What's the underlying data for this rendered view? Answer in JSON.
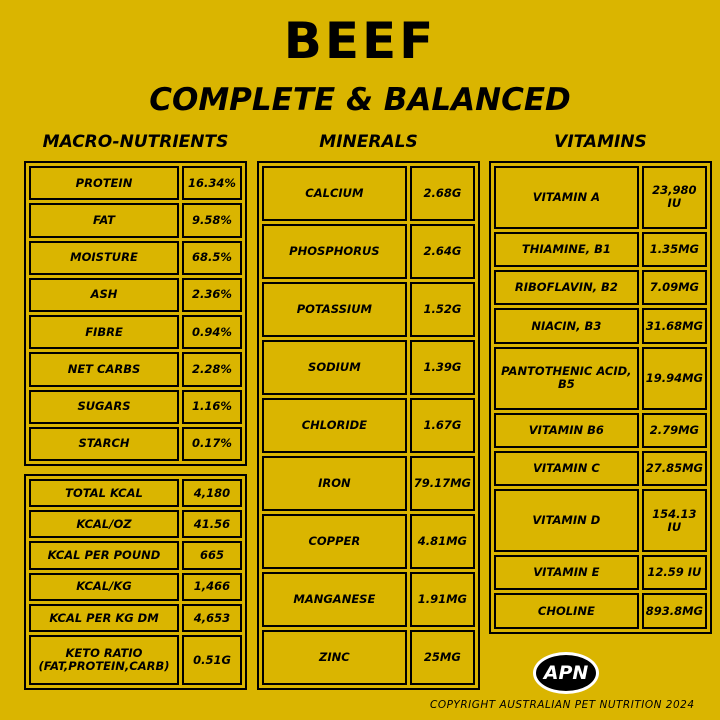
{
  "header": {
    "title": "BEEF",
    "subtitle": "COMPLETE & BALANCED"
  },
  "macro": {
    "heading": "MACRO-NUTRIENTS",
    "rows": [
      [
        "PROTEIN",
        "16.34%"
      ],
      [
        "FAT",
        "9.58%"
      ],
      [
        "MOISTURE",
        "68.5%"
      ],
      [
        "ASH",
        "2.36%"
      ],
      [
        "FIBRE",
        "0.94%"
      ],
      [
        "NET CARBS",
        "2.28%"
      ],
      [
        "SUGARS",
        "1.16%"
      ],
      [
        "STARCH",
        "0.17%"
      ]
    ]
  },
  "energy": {
    "rows": [
      [
        "TOTAL KCAL",
        "4,180"
      ],
      [
        "KCAL/OZ",
        "41.56"
      ],
      [
        "KCAL PER POUND",
        "665"
      ],
      [
        "KCAL/KG",
        "1,466"
      ],
      [
        "KCAL PER KG DM",
        "4,653"
      ],
      [
        "KETO RATIO (FAT,PROTEIN,CARB)",
        "0.51G"
      ]
    ]
  },
  "minerals": {
    "heading": "MINERALS",
    "rows": [
      [
        "CALCIUM",
        "2.68G"
      ],
      [
        "PHOSPHORUS",
        "2.64G"
      ],
      [
        "POTASSIUM",
        "1.52G"
      ],
      [
        "SODIUM",
        "1.39G"
      ],
      [
        "CHLORIDE",
        "1.67G"
      ],
      [
        "IRON",
        "79.17MG"
      ],
      [
        "COPPER",
        "4.81MG"
      ],
      [
        "MANGANESE",
        "1.91MG"
      ],
      [
        "ZINC",
        "25MG"
      ]
    ]
  },
  "vitamins": {
    "heading": "VITAMINS",
    "rows": [
      [
        "VITAMIN A",
        "23,980 IU"
      ],
      [
        "THIAMINE, B1",
        "1.35MG"
      ],
      [
        "RIBOFLAVIN, B2",
        "7.09MG"
      ],
      [
        "NIACIN, B3",
        "31.68MG"
      ],
      [
        "PANTOTHENIC ACID, B5",
        "19.94MG"
      ],
      [
        "VITAMIN B6",
        "2.79MG"
      ],
      [
        "VITAMIN C",
        "27.85MG"
      ],
      [
        "VITAMIN D",
        "154.13 IU"
      ],
      [
        "VITAMIN E",
        "12.59 IU"
      ],
      [
        "CHOLINE",
        "893.8MG"
      ]
    ]
  },
  "footer": {
    "logo": "APN",
    "copyright": "COPYRIGHT AUSTRALIAN PET NUTRITION 2024"
  }
}
